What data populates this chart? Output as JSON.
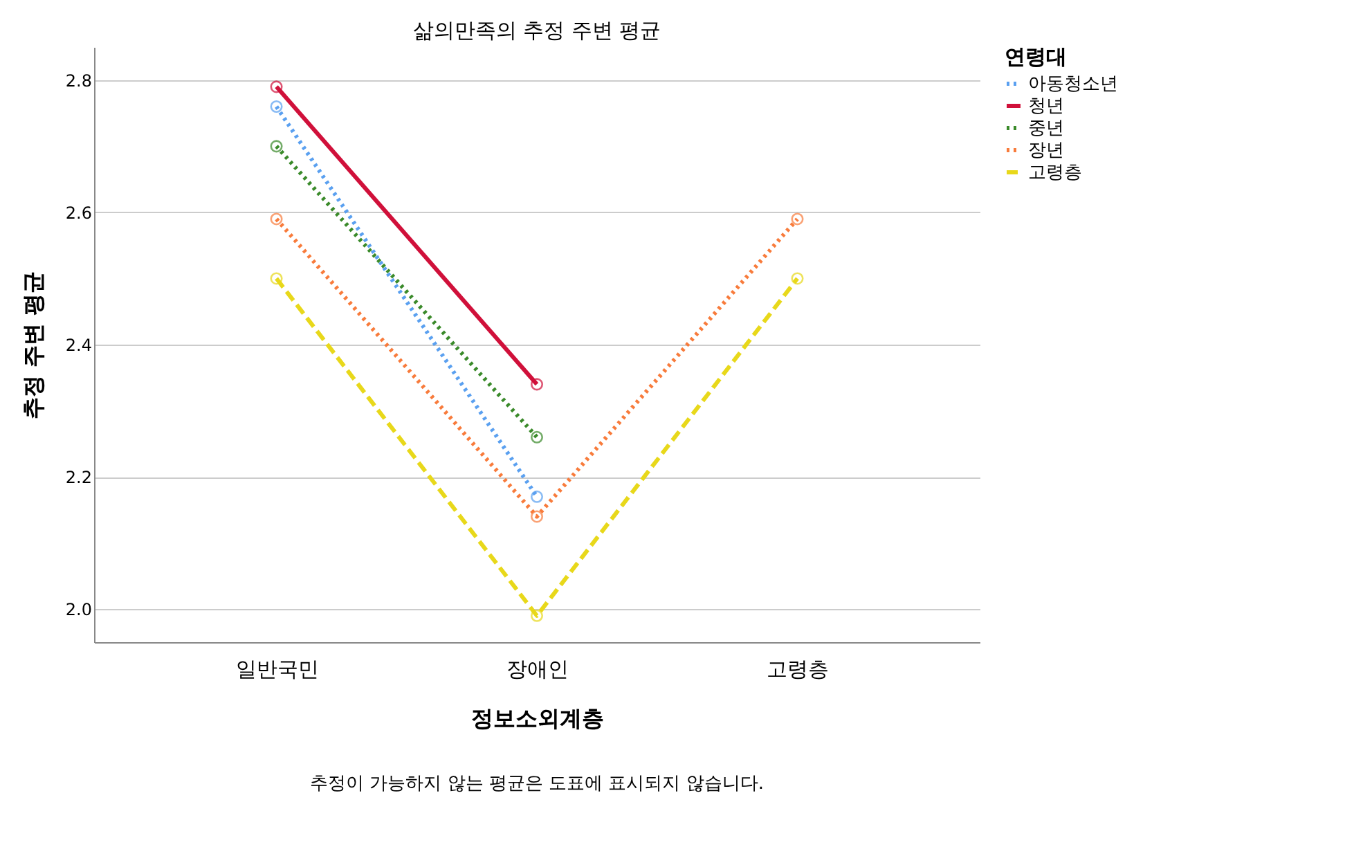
{
  "chart_data": {
    "type": "line",
    "title": "삶의만족의 추정 주변 평균",
    "xlabel": "정보소외계층",
    "ylabel": "추정 주변 평균",
    "legend_title": "연령대",
    "categories": [
      "일반국민",
      "장애인",
      "고령층"
    ],
    "series": [
      {
        "name": "아동청소년",
        "color": "#5aa0f0",
        "line_style": "dotted",
        "values": [
          2.76,
          2.17,
          null
        ]
      },
      {
        "name": "청년",
        "color": "#d0103a",
        "line_style": "solid",
        "values": [
          2.79,
          2.34,
          null
        ]
      },
      {
        "name": "중년",
        "color": "#3a8a2a",
        "line_style": "dotted",
        "values": [
          2.7,
          2.26,
          null
        ]
      },
      {
        "name": "장년",
        "color": "#f87b3b",
        "line_style": "dotted",
        "values": [
          2.59,
          2.14,
          2.59
        ]
      },
      {
        "name": "고령층",
        "color": "#e8d81a",
        "line_style": "dashed",
        "values": [
          2.5,
          1.99,
          2.5
        ]
      }
    ],
    "ylim": [
      1.95,
      2.85
    ],
    "yticks": [
      {
        "value": 2.0,
        "label": "2.0"
      },
      2.2,
      2.4,
      2.6,
      2.8
    ],
    "grid": "y",
    "legend": "top right",
    "marker": "circle",
    "annotations": [
      "추정이 가능하지 않는 평균은 도표에 표시되지 않습니다."
    ]
  }
}
